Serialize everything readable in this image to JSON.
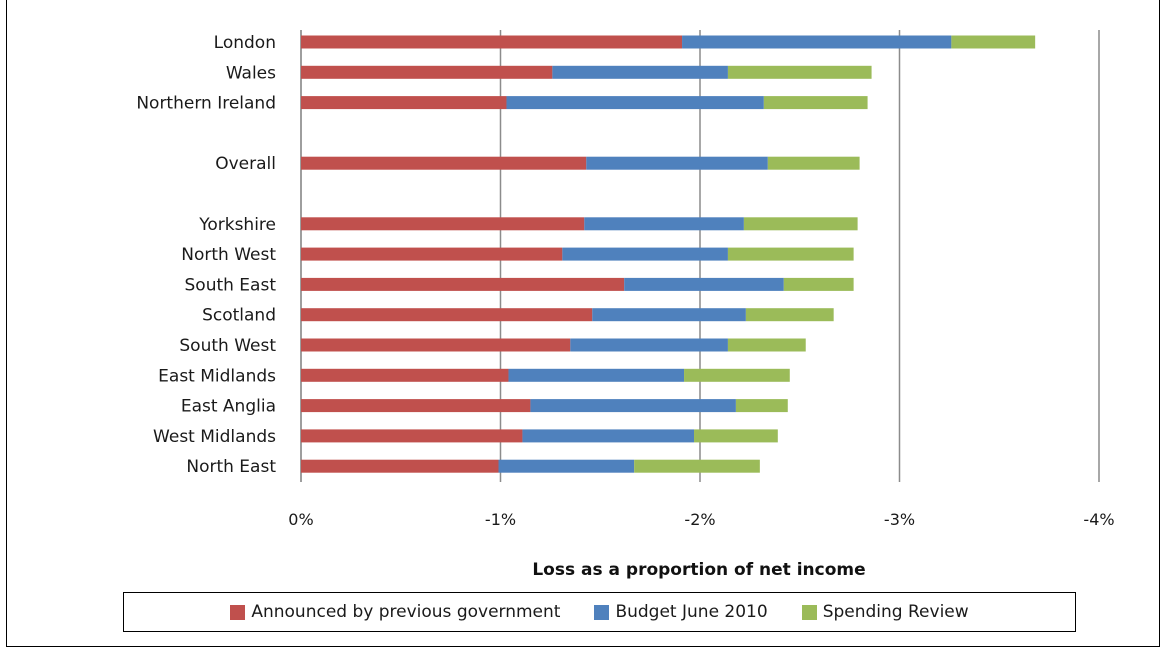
{
  "chart_data": {
    "type": "bar",
    "orientation": "horizontal",
    "stacked": true,
    "categories": [
      "London",
      "Wales",
      "Northern Ireland",
      "",
      "Overall",
      "",
      "Yorkshire",
      "North West",
      "South East",
      "Scotland",
      "South West",
      "East Midlands",
      "East Anglia",
      "West Midlands",
      "North East"
    ],
    "series": [
      {
        "name": "Announced by previous government",
        "color": "#c0504d",
        "values": [
          -1.91,
          -1.26,
          -1.03,
          null,
          -1.43,
          null,
          -1.42,
          -1.31,
          -1.62,
          -1.46,
          -1.35,
          -1.04,
          -1.15,
          -1.11,
          -0.99
        ]
      },
      {
        "name": "Budget June 2010",
        "color": "#4f81bd",
        "values": [
          -1.35,
          -0.88,
          -1.29,
          null,
          -0.91,
          null,
          -0.8,
          -0.83,
          -0.8,
          -0.77,
          -0.79,
          -0.88,
          -1.03,
          -0.86,
          -0.68
        ]
      },
      {
        "name": "Spending Review",
        "color": "#9bbb59",
        "values": [
          -0.42,
          -0.72,
          -0.52,
          null,
          -0.46,
          null,
          -0.57,
          -0.63,
          -0.35,
          -0.44,
          -0.39,
          -0.53,
          -0.26,
          -0.42,
          -0.63
        ]
      }
    ],
    "xlabel": "Loss as a proportion of net income",
    "xlim": [
      0,
      -4
    ],
    "xticks": [
      0,
      -1,
      -2,
      -3,
      -4
    ],
    "xtick_labels": [
      "0%",
      "-1%",
      "-2%",
      "-3%",
      "-4%"
    ],
    "grid": "vertical",
    "legend_position": "bottom"
  }
}
